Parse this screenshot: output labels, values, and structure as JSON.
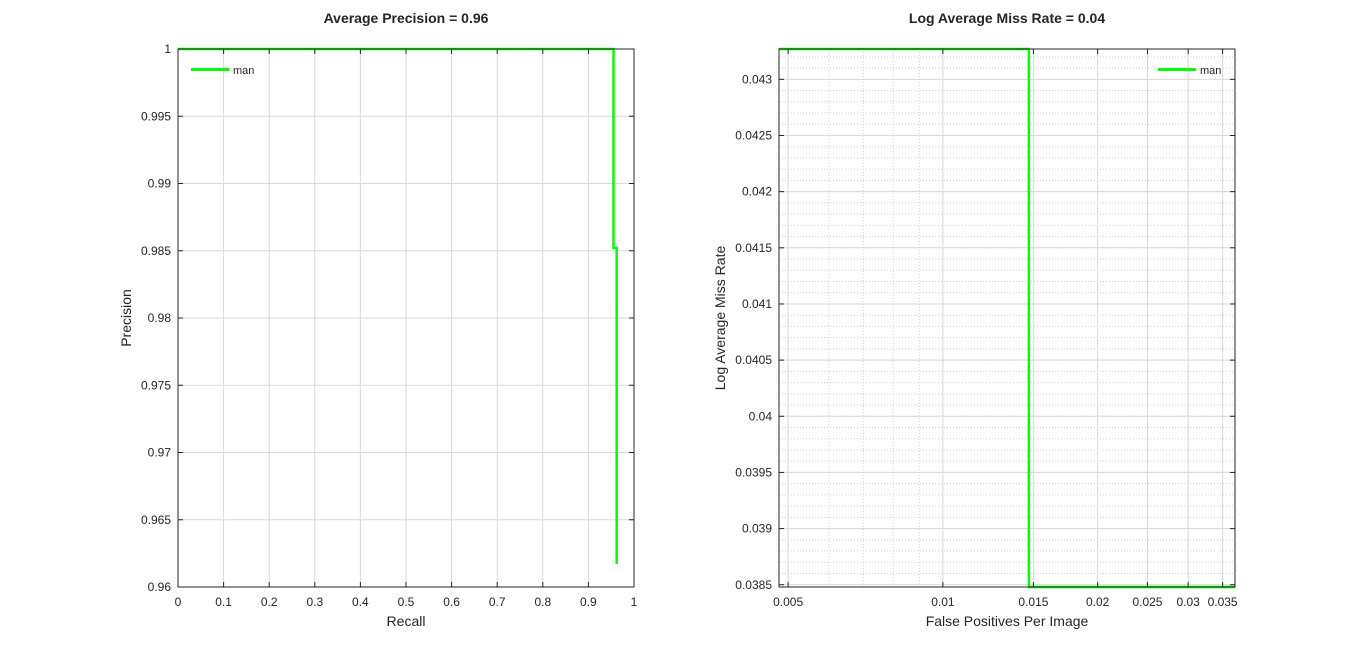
{
  "colors": {
    "series": "#00ff00",
    "grid": "#d9d9d9",
    "axis": "#262626",
    "background": "#ffffff"
  },
  "chart_data": [
    {
      "type": "line",
      "title": "Average Precision = 0.96",
      "xlabel": "Recall",
      "ylabel": "Precision",
      "xlim": [
        0,
        1
      ],
      "ylim": [
        0.96,
        1
      ],
      "xticks": [
        0,
        0.1,
        0.2,
        0.3,
        0.4,
        0.5,
        0.6,
        0.7,
        0.8,
        0.9,
        1
      ],
      "xtick_labels": [
        "0",
        "0.1",
        "0.2",
        "0.3",
        "0.4",
        "0.5",
        "0.6",
        "0.7",
        "0.8",
        "0.9",
        "1"
      ],
      "yticks": [
        0.96,
        0.965,
        0.97,
        0.975,
        0.98,
        0.985,
        0.99,
        0.995,
        1
      ],
      "ytick_labels": [
        "0.96",
        "0.965",
        "0.97",
        "0.975",
        "0.98",
        "0.985",
        "0.99",
        "0.995",
        "1"
      ],
      "grid": "major",
      "xscale": "linear",
      "legend": {
        "location": "top-left",
        "entries": [
          "man"
        ]
      },
      "series": [
        {
          "name": "man",
          "x": [
            0,
            0.955,
            0.955,
            0.96,
            0.96,
            0.962,
            0.962
          ],
          "y": [
            1,
            1,
            0.9852,
            0.9852,
            0.9852,
            0.9852,
            0.9617
          ]
        }
      ]
    },
    {
      "type": "line",
      "title": "Log Average Miss Rate = 0.04",
      "xlabel": "False Positives Per Image",
      "ylabel": "Log Average Miss Rate",
      "xlim": [
        0.0048,
        0.037
      ],
      "ylim": [
        0.03848,
        0.04327
      ],
      "xticks": [
        0.005,
        0.01,
        0.015,
        0.02,
        0.025,
        0.03,
        0.035
      ],
      "xtick_labels": [
        "0.005",
        "0.01",
        "0.015",
        "0.02",
        "0.025",
        "0.03",
        "0.035"
      ],
      "yticks": [
        0.0385,
        0.039,
        0.0395,
        0.04,
        0.0405,
        0.041,
        0.0415,
        0.042,
        0.0425,
        0.043
      ],
      "ytick_labels": [
        "0.0385",
        "0.039",
        "0.0395",
        "0.04",
        "0.0405",
        "0.041",
        "0.0415",
        "0.042",
        "0.0425",
        "0.043"
      ],
      "grid": "major+minor",
      "xscale": "log",
      "legend": {
        "location": "top-right",
        "entries": [
          "man"
        ]
      },
      "series": [
        {
          "name": "man",
          "x": [
            0.0048,
            0.0147,
            0.0147,
            0.037
          ],
          "y": [
            0.04327,
            0.04327,
            0.03848,
            0.03848
          ]
        }
      ]
    }
  ]
}
